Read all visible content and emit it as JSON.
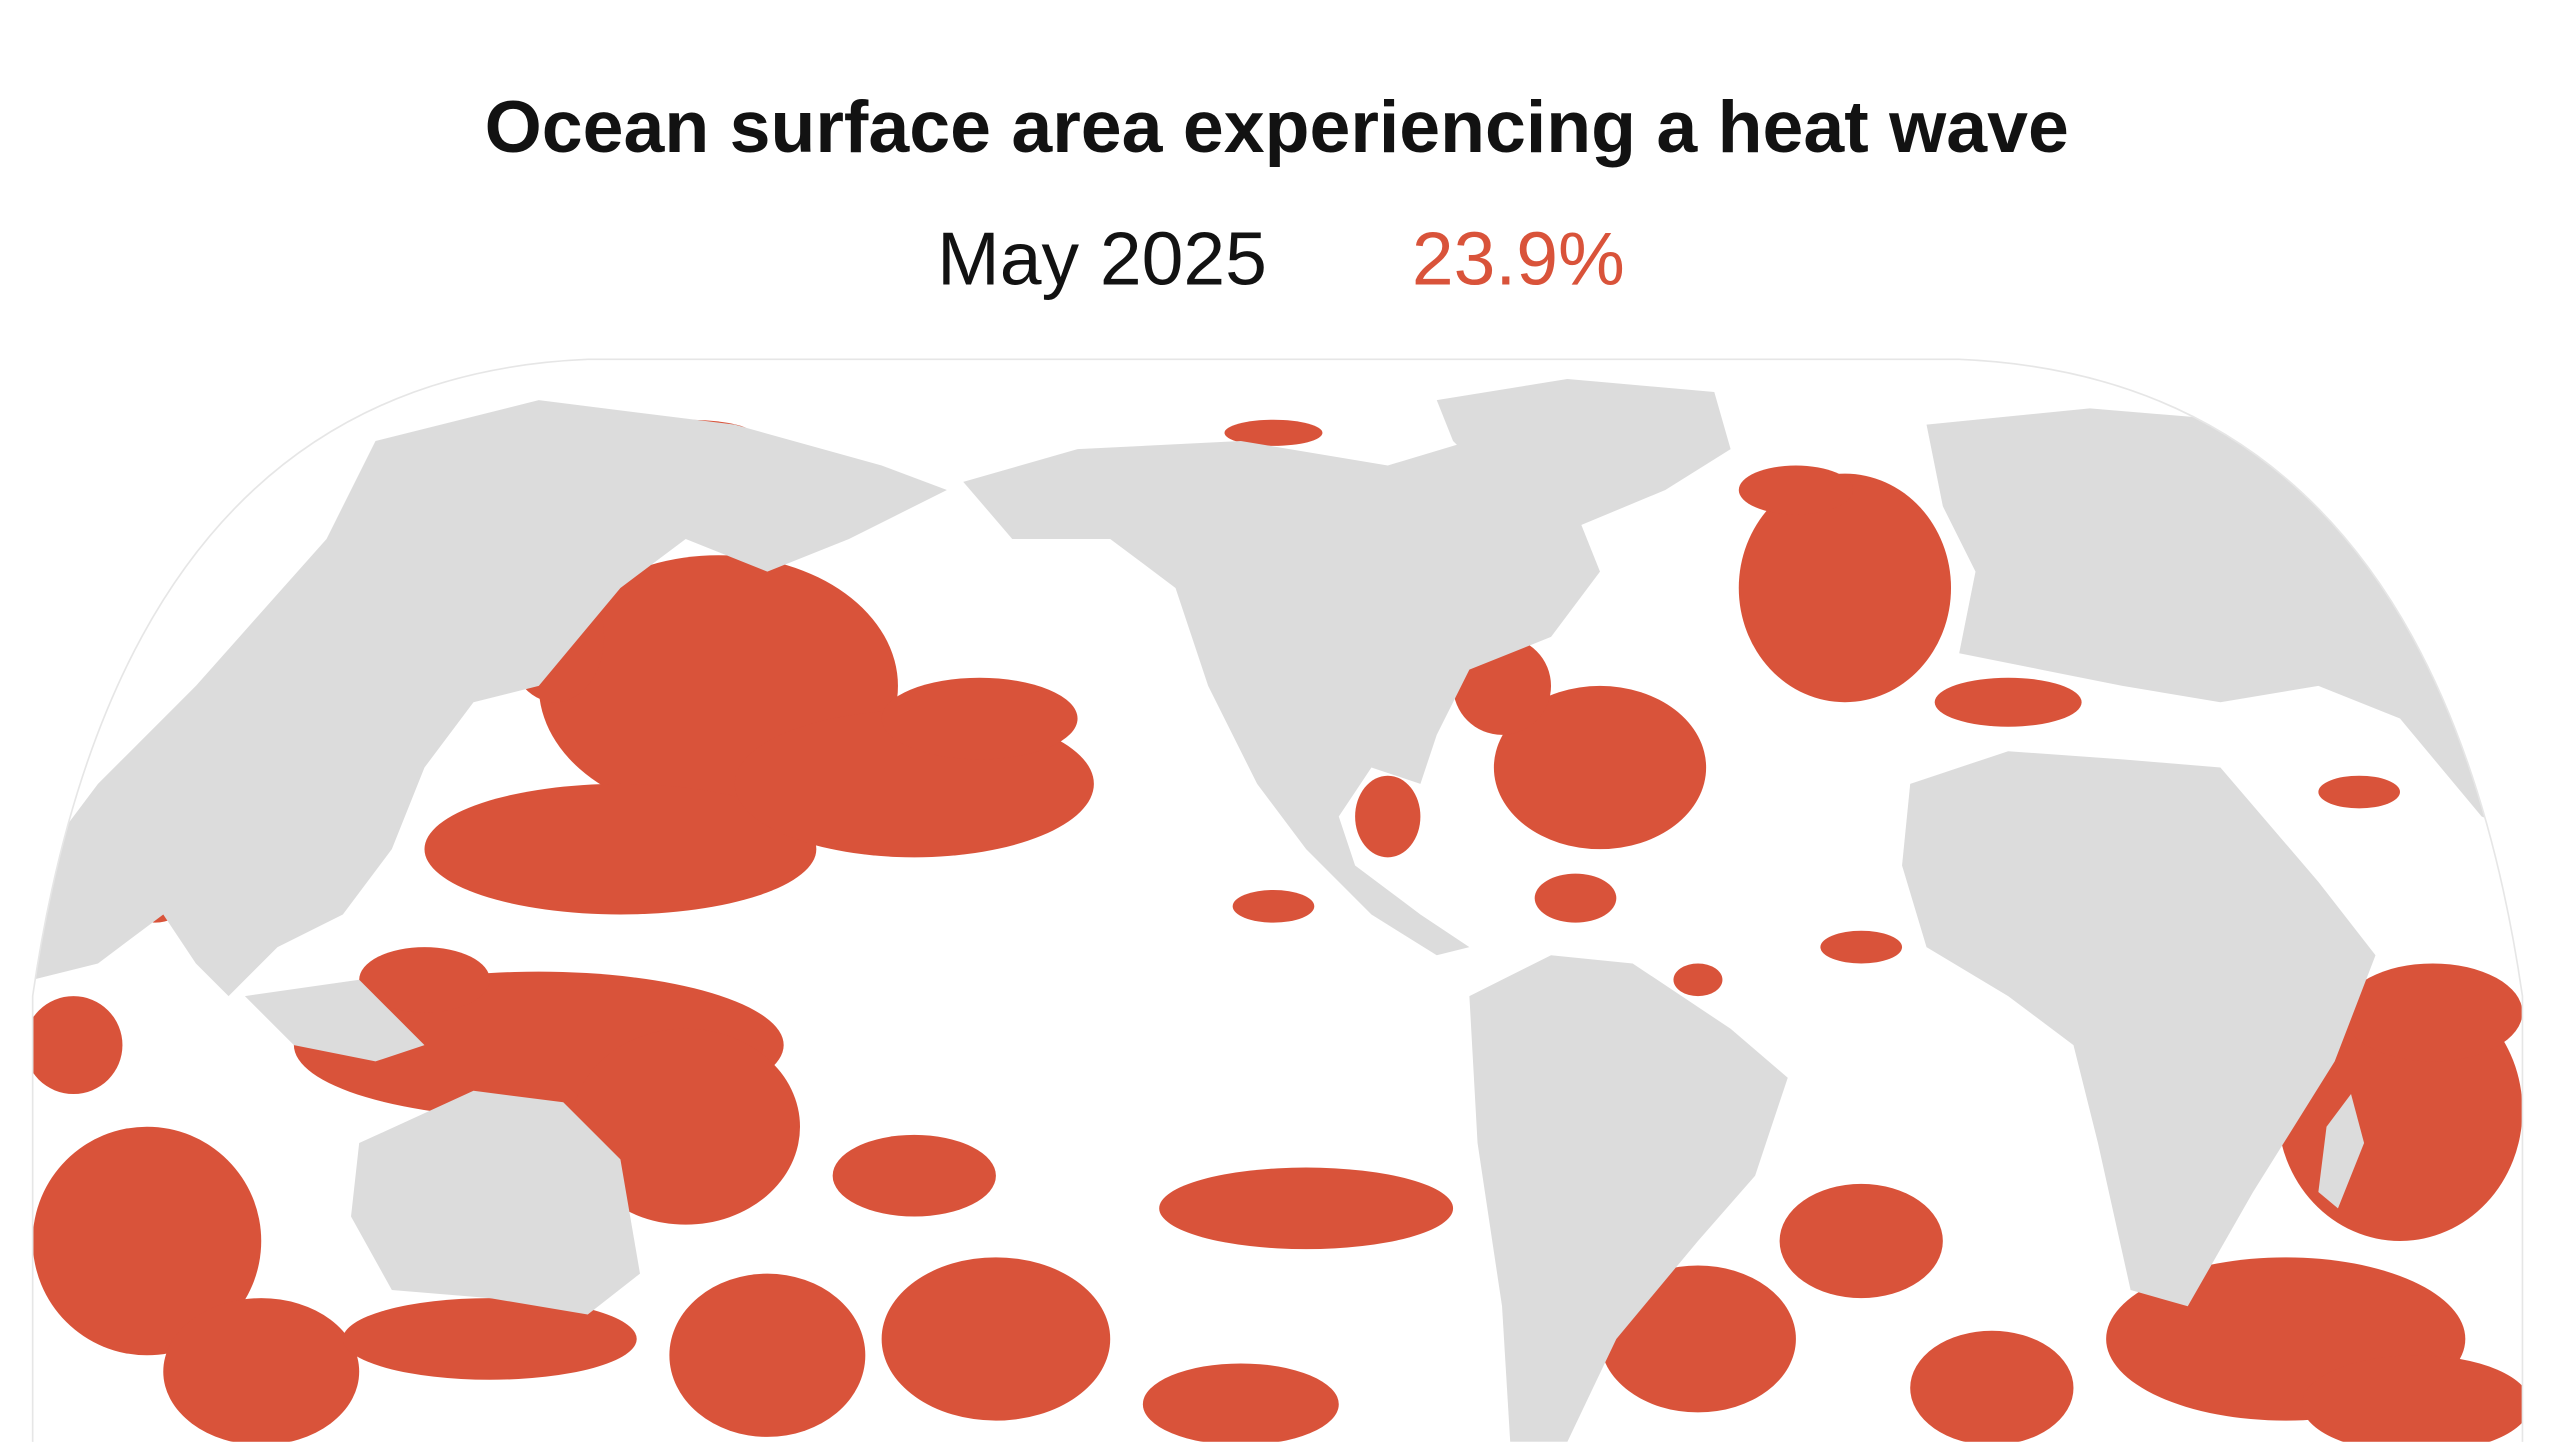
{
  "header": {
    "title": "Ocean surface area experiencing a heat wave",
    "date": "May 2025",
    "value": "23.9%"
  }
}
